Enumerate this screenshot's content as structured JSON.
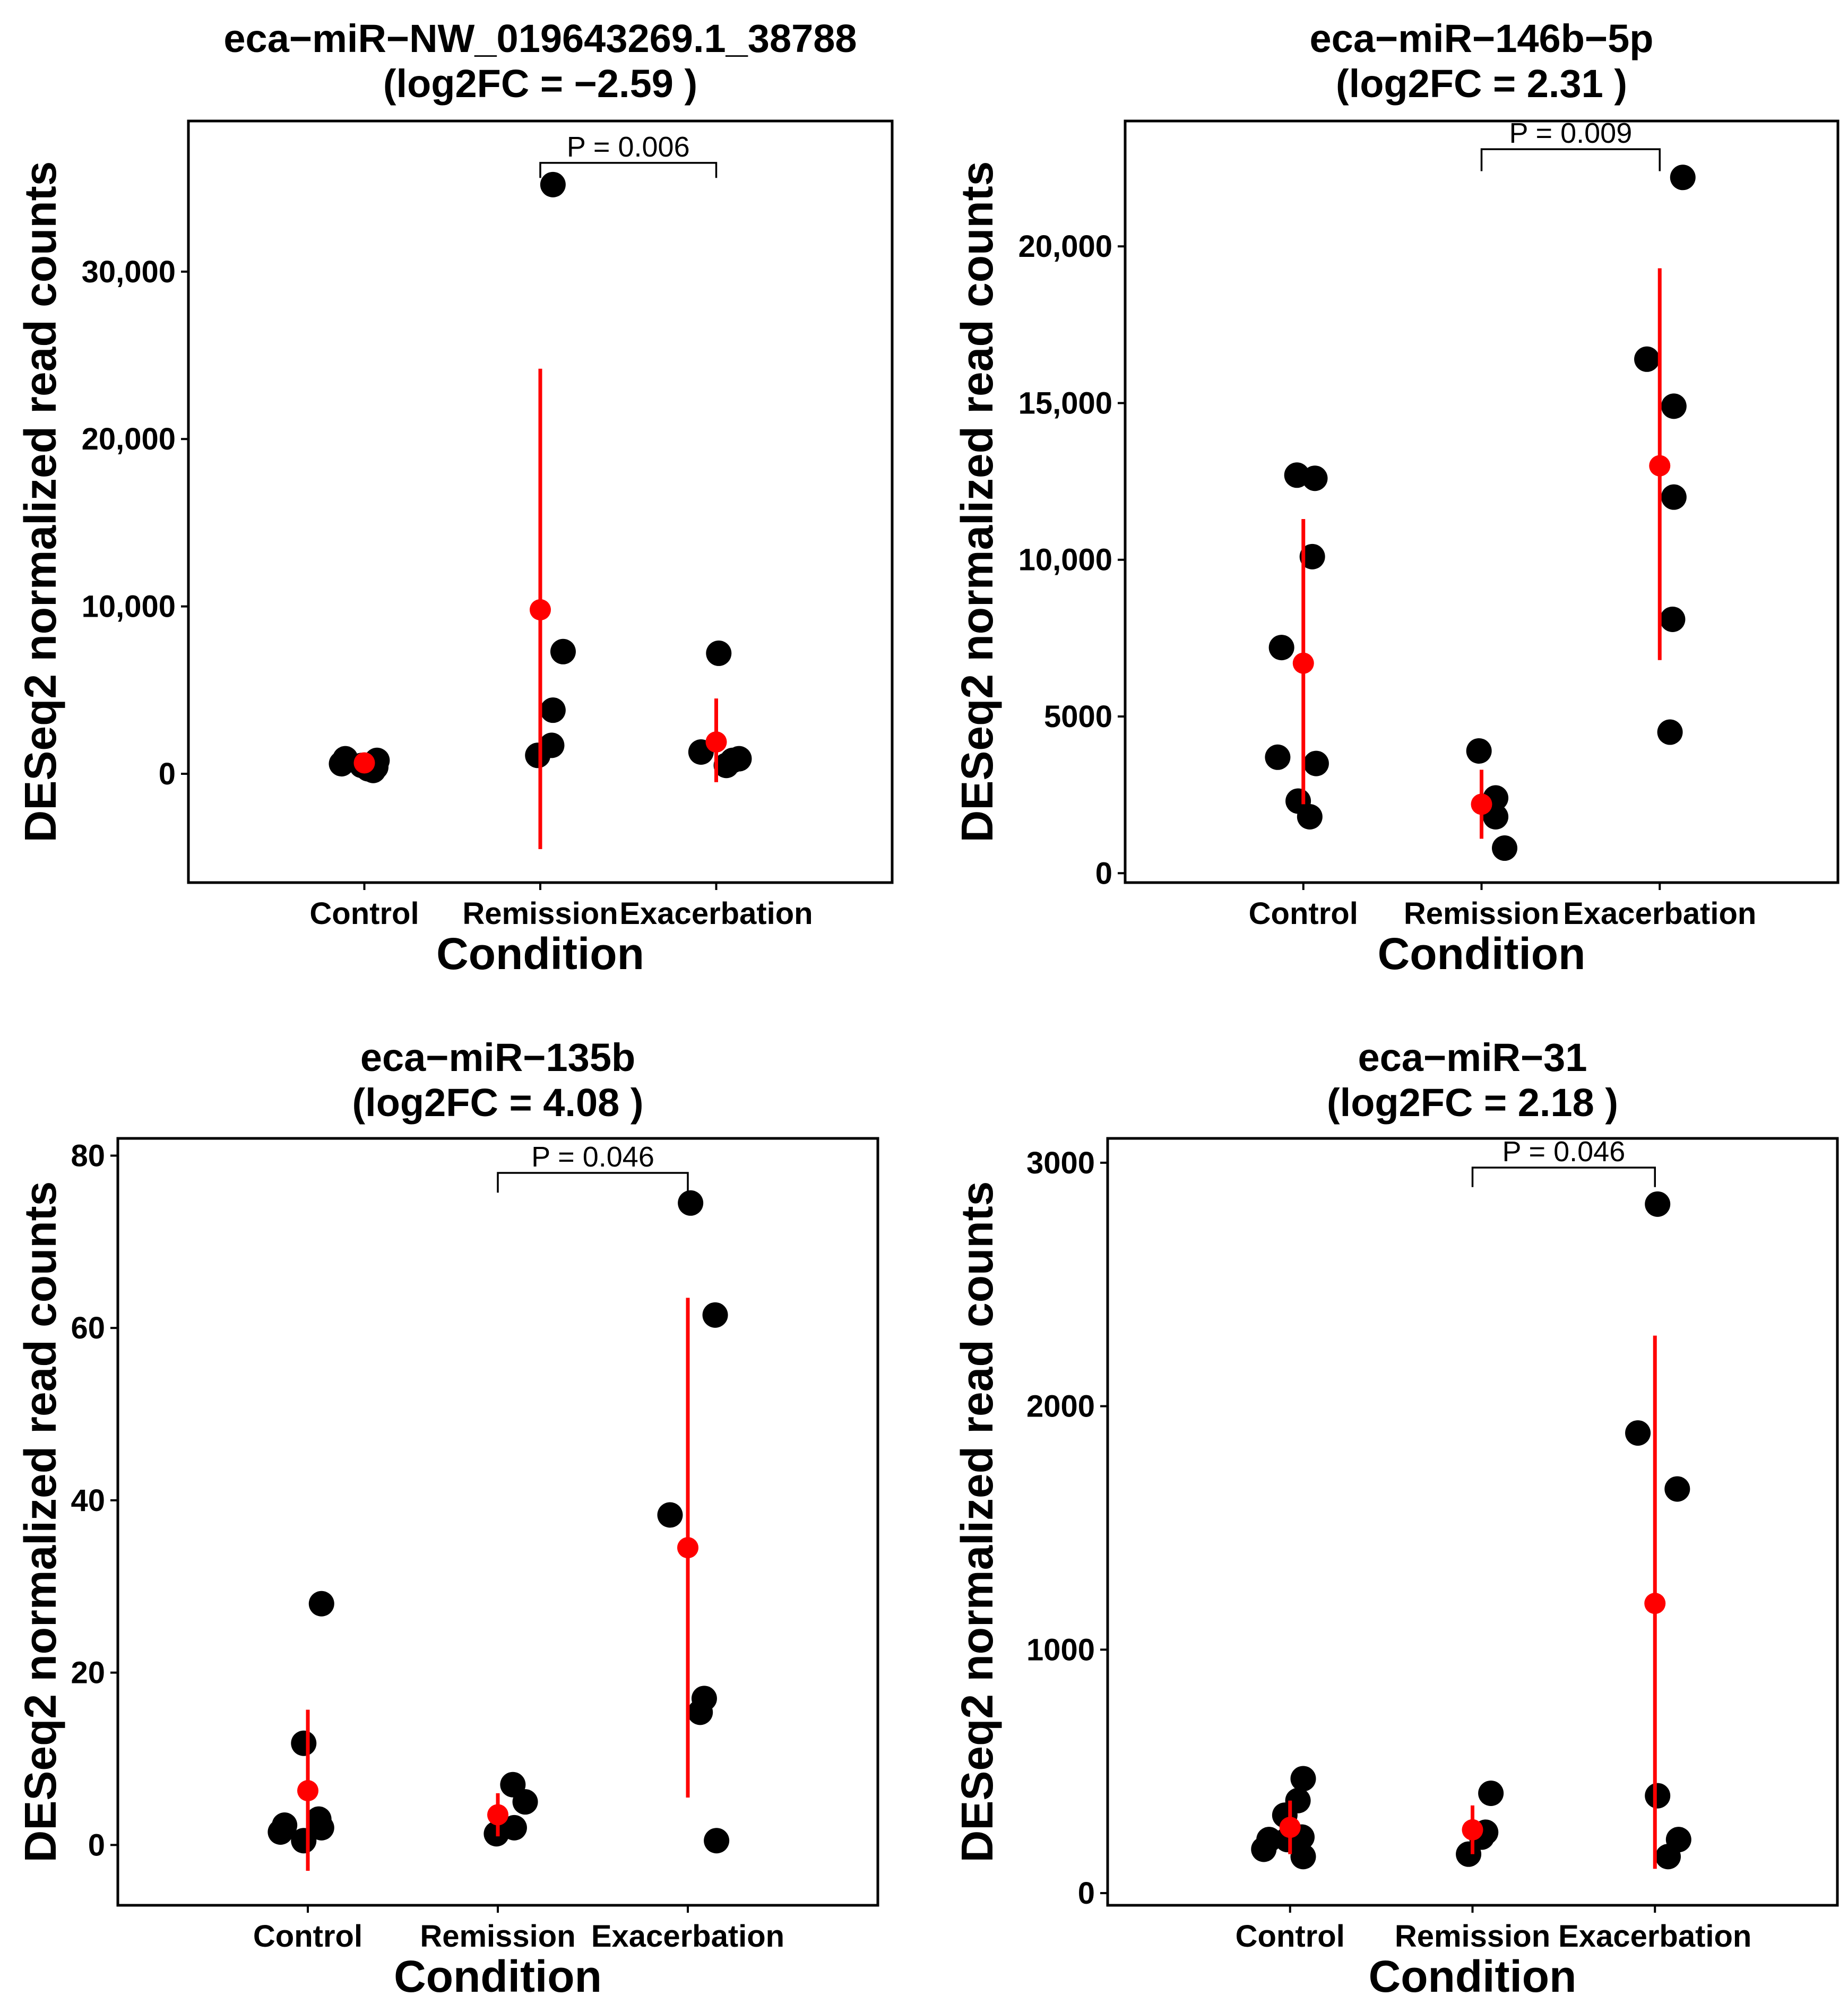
{
  "figure": {
    "colors": {
      "points": "#000000",
      "mean": "#ff0000",
      "errorbar": "#ff0000",
      "frame": "#000000"
    }
  },
  "chart_data": [
    {
      "type": "scatter",
      "title_line1": "eca−miR−NW_019643269.1_38788",
      "title_line2": "(log2FC =  −2.59 )",
      "xlabel": "Condition",
      "ylabel": "DESeq2 normalized read counts",
      "categories": [
        "Control",
        "Remission",
        "Exacerbation"
      ],
      "ylim": [
        -6500,
        39000
      ],
      "yticks": [
        0,
        10000,
        20000,
        30000
      ],
      "ytick_labels": [
        "0",
        "10,000",
        "20,000",
        "30,000"
      ],
      "pvalue": {
        "label": "P =  0.006",
        "from": "Remission",
        "to": "Exacerbation",
        "y": 36500,
        "drop": 900
      },
      "series": [
        {
          "name": "Control",
          "points": [
            [
              -0.18,
              600
            ],
            [
              -0.15,
              900
            ],
            [
              -0.02,
              500
            ],
            [
              0.07,
              200
            ],
            [
              0.09,
              400
            ],
            [
              0.1,
              800
            ],
            [
              0.03,
              300
            ]
          ],
          "mean": 650,
          "err_low": 150,
          "err_high": 1150
        },
        {
          "name": "Remission",
          "points": [
            [
              0.1,
              35200
            ],
            [
              0.18,
              7300
            ],
            [
              0.1,
              3800
            ],
            [
              0.09,
              1700
            ],
            [
              -0.02,
              1100
            ]
          ],
          "mean": 9800,
          "err_low": -4500,
          "err_high": 24200
        },
        {
          "name": "Exacerbation",
          "points": [
            [
              0.02,
              7200
            ],
            [
              -0.12,
              1300
            ],
            [
              0.08,
              500
            ],
            [
              0.18,
              900
            ],
            [
              0.13,
              800
            ]
          ],
          "mean": 1900,
          "err_low": -500,
          "err_high": 4500
        }
      ]
    },
    {
      "type": "scatter",
      "title_line1": "eca−miR−146b−5p",
      "title_line2": "(log2FC =  2.31 )",
      "xlabel": "Condition",
      "ylabel": "DESeq2 normalized read counts",
      "categories": [
        "Control",
        "Remission",
        "Exacerbation"
      ],
      "ylim": [
        -300,
        24000
      ],
      "yticks": [
        0,
        5000,
        10000,
        15000,
        20000
      ],
      "ytick_labels": [
        "0",
        "5000",
        "10,000",
        "15,000",
        "20,000"
      ],
      "pvalue": {
        "label": "P =  0.009",
        "from": "Remission",
        "to": "Exacerbation",
        "y": 23100,
        "drop": 700
      },
      "series": [
        {
          "name": "Control",
          "points": [
            [
              -0.05,
              12700
            ],
            [
              0.09,
              12600
            ],
            [
              0.07,
              10100
            ],
            [
              -0.17,
              7200
            ],
            [
              -0.2,
              3700
            ],
            [
              0.1,
              3500
            ],
            [
              -0.04,
              2300
            ],
            [
              0.05,
              1800
            ]
          ],
          "mean": 6700,
          "err_low": 2200,
          "err_high": 11300
        },
        {
          "name": "Remission",
          "points": [
            [
              -0.02,
              3900
            ],
            [
              0.11,
              2400
            ],
            [
              0.11,
              1800
            ],
            [
              0.18,
              800
            ]
          ],
          "mean": 2200,
          "err_low": 1100,
          "err_high": 3300
        },
        {
          "name": "Exacerbation",
          "points": [
            [
              0.18,
              22200
            ],
            [
              -0.1,
              16400
            ],
            [
              0.11,
              14900
            ],
            [
              0.11,
              12000
            ],
            [
              0.1,
              8100
            ],
            [
              0.08,
              4500
            ]
          ],
          "mean": 13000,
          "err_low": 6800,
          "err_high": 19300
        }
      ]
    },
    {
      "type": "scatter",
      "title_line1": "eca−miR−135b",
      "title_line2": "(log2FC =  4.08 )",
      "xlabel": "Condition",
      "ylabel": "DESeq2 normalized read counts",
      "categories": [
        "Control",
        "Remission",
        "Exacerbation"
      ],
      "ylim": [
        -7,
        82
      ],
      "yticks": [
        0,
        20,
        40,
        60,
        80
      ],
      "ytick_labels": [
        "0",
        "20",
        "40",
        "60",
        "80"
      ],
      "pvalue": {
        "label": "P =  0.046",
        "from": "Remission",
        "to": "Exacerbation",
        "y": 78,
        "drop": 2.3
      },
      "series": [
        {
          "name": "Control",
          "points": [
            [
              0.1,
              28
            ],
            [
              -0.03,
              11.8
            ],
            [
              -0.2,
              1.5
            ],
            [
              -0.17,
              2.3
            ],
            [
              -0.03,
              0.5
            ],
            [
              0.08,
              3
            ],
            [
              0.1,
              2
            ]
          ],
          "mean": 6.3,
          "err_low": -3,
          "err_high": 15.7
        },
        {
          "name": "Remission",
          "points": [
            [
              0.11,
              7
            ],
            [
              0.2,
              5
            ],
            [
              -0.01,
              1.3
            ],
            [
              0.12,
              2
            ]
          ],
          "mean": 3.5,
          "err_low": 1,
          "err_high": 6
        },
        {
          "name": "Exacerbation",
          "points": [
            [
              0.02,
              74.5
            ],
            [
              0.2,
              61.5
            ],
            [
              -0.13,
              38.3
            ],
            [
              0.12,
              17
            ],
            [
              0.09,
              15.4
            ],
            [
              0.21,
              0.5
            ]
          ],
          "mean": 34.5,
          "err_low": 5.5,
          "err_high": 63.5
        }
      ]
    },
    {
      "type": "scatter",
      "title_line1": "eca−miR−31",
      "title_line2": "(log2FC =  2.18 )",
      "xlabel": "Condition",
      "ylabel": "DESeq2 normalized read counts",
      "categories": [
        "Control",
        "Remission",
        "Exacerbation"
      ],
      "ylim": [
        -50,
        3100
      ],
      "yticks": [
        0,
        1000,
        2000,
        3000
      ],
      "ytick_labels": [
        "0",
        "1000",
        "2000",
        "3000"
      ],
      "pvalue": {
        "label": "P =  0.046",
        "from": "Remission",
        "to": "Exacerbation",
        "y": 2980,
        "drop": 80
      },
      "series": [
        {
          "name": "Control",
          "points": [
            [
              0.1,
              470
            ],
            [
              0.06,
              380
            ],
            [
              -0.04,
              320
            ],
            [
              -0.16,
              220
            ],
            [
              -0.2,
              180
            ],
            [
              -0.02,
              220
            ],
            [
              0.09,
              230
            ],
            [
              0.1,
              150
            ]
          ],
          "mean": 270,
          "err_low": 160,
          "err_high": 380
        },
        {
          "name": "Remission",
          "points": [
            [
              0.14,
              410
            ],
            [
              0.1,
              250
            ],
            [
              0.07,
              230
            ],
            [
              -0.03,
              160
            ]
          ],
          "mean": 260,
          "err_low": 160,
          "err_high": 360
        },
        {
          "name": "Exacerbation",
          "points": [
            [
              0.02,
              2830
            ],
            [
              -0.13,
              1890
            ],
            [
              0.17,
              1660
            ],
            [
              0.02,
              400
            ],
            [
              0.18,
              220
            ],
            [
              0.1,
              150
            ]
          ],
          "mean": 1190,
          "err_low": 100,
          "err_high": 2290
        }
      ]
    }
  ]
}
